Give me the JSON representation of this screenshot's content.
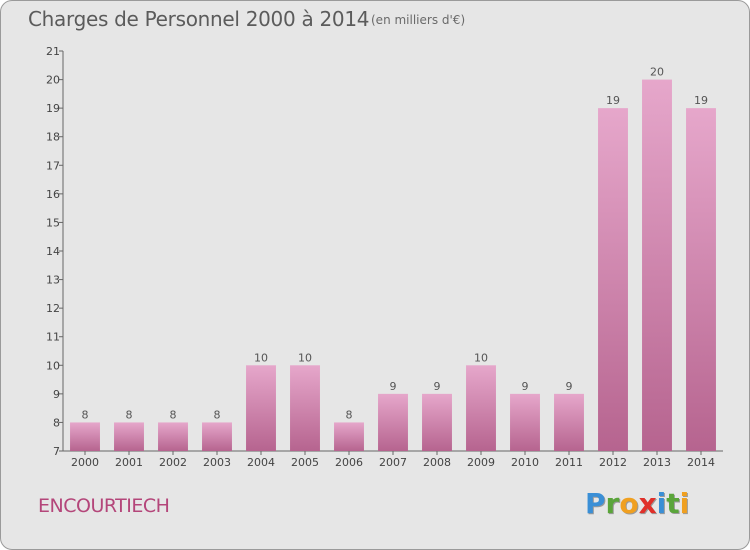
{
  "title": "Charges de Personnel 2000 à 2014",
  "subtitle": "(en milliers d'€)",
  "commune": "ENCOURTIECH",
  "logo": {
    "letters": [
      "P",
      "r",
      "o",
      "x",
      "i",
      "t",
      "i"
    ],
    "colors": [
      "#3a8fd6",
      "#5aa53a",
      "#f0a020",
      "#e0302a",
      "#3a8fd6",
      "#5aa53a",
      "#f0a020"
    ]
  },
  "colors": {
    "bar_top": "#e6a7cb",
    "bar_bottom": "#b6648f",
    "commune": "#b4467a",
    "background": "#e6e6e6"
  },
  "chart_data": {
    "type": "bar",
    "categories": [
      "2000",
      "2001",
      "2002",
      "2003",
      "2004",
      "2005",
      "2006",
      "2007",
      "2008",
      "2009",
      "2010",
      "2011",
      "2012",
      "2013",
      "2014"
    ],
    "values": [
      8,
      8,
      8,
      8,
      10,
      10,
      8,
      9,
      9,
      10,
      9,
      9,
      19,
      20,
      19
    ],
    "title": "Charges de Personnel 2000 à 2014",
    "xlabel": "",
    "ylabel": "",
    "ylim": [
      7,
      21
    ],
    "yticks": [
      "7",
      "8",
      "9",
      "10",
      "11",
      "12",
      "13",
      "14",
      "15",
      "16",
      "17",
      "18",
      "19",
      "20",
      "21"
    ],
    "grid": false,
    "legend": "none"
  }
}
